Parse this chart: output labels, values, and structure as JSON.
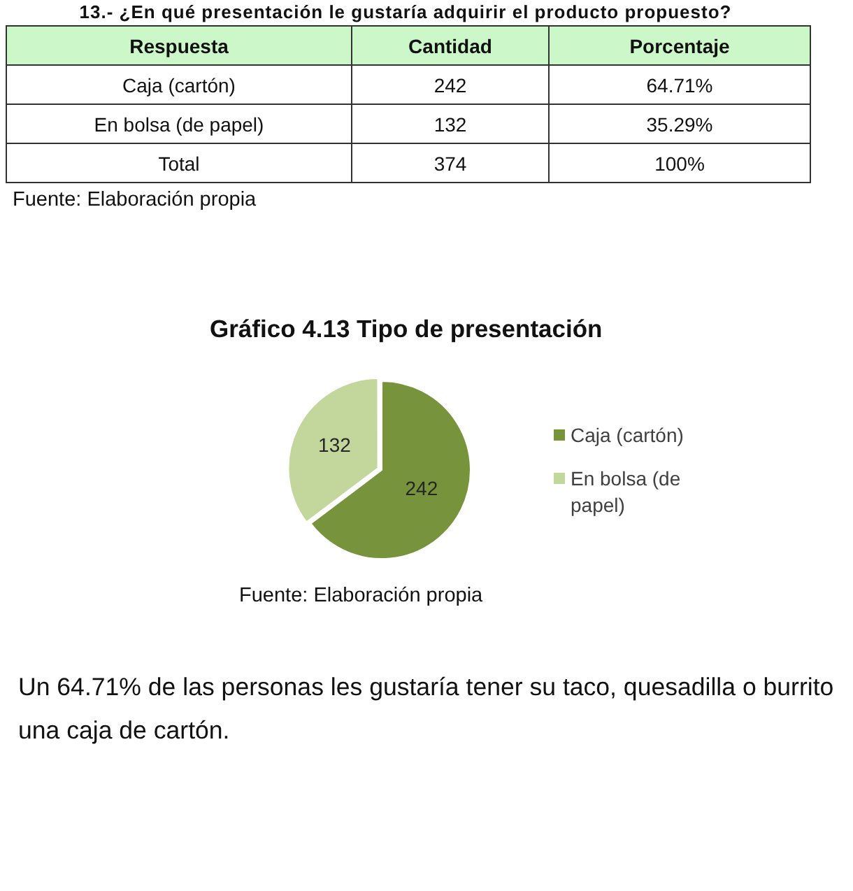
{
  "chart_data": {
    "type": "pie",
    "title": "Gráfico 4.13 Tipo de presentación",
    "categories": [
      "Caja (cartón)",
      "En bolsa (de papel)"
    ],
    "values": [
      242,
      132
    ],
    "colors": [
      "#77933c",
      "#c3d69b"
    ],
    "data_labels": true,
    "legend": "right",
    "annotations": [
      "13.- ¿En qué presentación le gustaría adquirir el producto propuesto?",
      "Respuesta",
      "Cantidad",
      "Porcentaje",
      "Caja (cartón)",
      "242",
      "64.71%",
      "En bolsa (de papel)",
      "132",
      "35.29%",
      "Total",
      "374",
      "100%",
      "Fuente: Elaboración propia",
      "Fuente: Elaboración propia",
      "Un 64.71% de las personas les gustaría tener su taco, quesadilla o burrito una caja de cartón."
    ]
  }
}
